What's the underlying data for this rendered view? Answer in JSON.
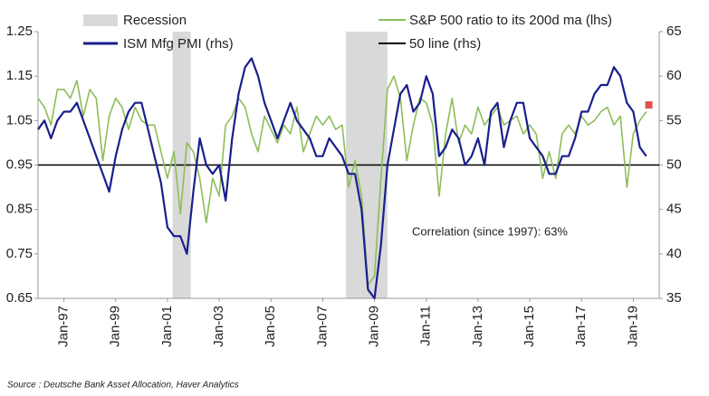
{
  "chart_data": {
    "type": "line",
    "legend": {
      "recession": "Recession"
    },
    "annotation": "Correlation (since 1997): 63%",
    "source": "Source : Deutsche Bank Asset Allocation, Haver Analytics",
    "recession_color": "#d9d9d9",
    "recessions": [
      [
        2001.2,
        2001.9
      ],
      [
        2007.9,
        2009.5
      ]
    ],
    "xlim": [
      1996,
      2020
    ],
    "xticks": [
      {
        "value": 1997,
        "label": "Jan-97"
      },
      {
        "value": 1999,
        "label": "Jan-99"
      },
      {
        "value": 2001,
        "label": "Jan-01"
      },
      {
        "value": 2003,
        "label": "Jan-03"
      },
      {
        "value": 2005,
        "label": "Jan-05"
      },
      {
        "value": 2007,
        "label": "Jan-07"
      },
      {
        "value": 2009,
        "label": "Jan-09"
      },
      {
        "value": 2011,
        "label": "Jan-11"
      },
      {
        "value": 2013,
        "label": "Jan-13"
      },
      {
        "value": 2015,
        "label": "Jan-15"
      },
      {
        "value": 2017,
        "label": "Jan-17"
      },
      {
        "value": 2019,
        "label": "Jan-19"
      }
    ],
    "ylim": [
      0.65,
      1.25
    ],
    "yticks": [
      0.65,
      0.75,
      0.85,
      0.95,
      1.05,
      1.15,
      1.25
    ],
    "y2lim": [
      35,
      65
    ],
    "y2ticks": [
      35,
      40,
      45,
      50,
      55,
      60,
      65
    ],
    "x": [
      1996,
      1996.25,
      1996.5,
      1996.75,
      1997,
      1997.25,
      1997.5,
      1997.75,
      1998,
      1998.25,
      1998.5,
      1998.75,
      1999,
      1999.25,
      1999.5,
      1999.75,
      2000,
      2000.25,
      2000.5,
      2000.75,
      2001,
      2001.25,
      2001.5,
      2001.75,
      2002,
      2002.25,
      2002.5,
      2002.75,
      2003,
      2003.25,
      2003.5,
      2003.75,
      2004,
      2004.25,
      2004.5,
      2004.75,
      2005,
      2005.25,
      2005.5,
      2005.75,
      2006,
      2006.25,
      2006.5,
      2006.75,
      2007,
      2007.25,
      2007.5,
      2007.75,
      2008,
      2008.25,
      2008.5,
      2008.75,
      2009,
      2009.25,
      2009.5,
      2009.75,
      2010,
      2010.25,
      2010.5,
      2010.75,
      2011,
      2011.25,
      2011.5,
      2011.75,
      2012,
      2012.25,
      2012.5,
      2012.75,
      2013,
      2013.25,
      2013.5,
      2013.75,
      2014,
      2014.25,
      2014.5,
      2014.75,
      2015,
      2015.25,
      2015.5,
      2015.75,
      2016,
      2016.25,
      2016.5,
      2016.75,
      2017,
      2017.25,
      2017.5,
      2017.75,
      2018,
      2018.25,
      2018.5,
      2018.75,
      2019,
      2019.25,
      2019.5
    ],
    "series": [
      {
        "name": "S&P 500 ratio to its 200d ma (lhs)",
        "color": "#8dbd5a",
        "axis": "y",
        "values": [
          1.1,
          1.08,
          1.04,
          1.12,
          1.12,
          1.1,
          1.14,
          1.06,
          1.12,
          1.1,
          0.96,
          1.06,
          1.1,
          1.08,
          1.03,
          1.08,
          1.05,
          1.04,
          1.04,
          0.98,
          0.92,
          0.98,
          0.84,
          1.0,
          0.98,
          0.92,
          0.82,
          0.92,
          0.88,
          1.04,
          1.06,
          1.1,
          1.08,
          1.02,
          0.98,
          1.06,
          1.03,
          1.0,
          1.04,
          1.02,
          1.08,
          0.98,
          1.02,
          1.06,
          1.04,
          1.06,
          1.03,
          1.04,
          0.9,
          0.96,
          0.88,
          0.68,
          0.7,
          0.92,
          1.12,
          1.15,
          1.1,
          0.96,
          1.04,
          1.1,
          1.09,
          1.04,
          0.88,
          1.02,
          1.1,
          1.0,
          1.04,
          1.02,
          1.08,
          1.04,
          1.06,
          1.08,
          1.04,
          1.05,
          1.06,
          1.02,
          1.04,
          1.02,
          0.92,
          0.98,
          0.92,
          1.02,
          1.04,
          1.02,
          1.06,
          1.04,
          1.05,
          1.07,
          1.08,
          1.04,
          1.06,
          0.9,
          1.02,
          1.05,
          1.07
        ]
      },
      {
        "name": "ISM Mfg PMI (rhs)",
        "color": "#1a1f8c",
        "axis": "y2",
        "values": [
          54,
          55,
          53,
          55,
          56,
          56,
          57,
          55,
          53,
          51,
          49,
          47,
          51,
          54,
          56,
          57,
          57,
          54,
          51,
          48,
          43,
          42,
          42,
          40,
          47,
          53,
          50,
          49,
          50,
          46,
          53,
          58,
          61,
          62,
          60,
          57,
          55,
          53,
          55,
          57,
          55,
          54,
          53,
          51,
          51,
          53,
          52,
          51,
          49,
          49,
          45,
          36,
          35,
          41,
          50,
          54,
          58,
          59,
          56,
          57,
          60,
          58,
          51,
          52,
          54,
          53,
          50,
          51,
          53,
          50,
          56,
          57,
          52,
          55,
          57,
          57,
          53,
          52,
          51,
          49,
          49,
          51,
          51,
          53,
          56,
          56,
          58,
          59,
          59,
          61,
          60,
          57,
          56,
          52,
          51
        ]
      }
    ],
    "reference_line": {
      "name": "50 line (rhs)",
      "value": 50,
      "axis": "y2",
      "color": "#000000"
    },
    "marker": {
      "x": 2019.6,
      "value": 1.085,
      "axis": "y",
      "color": "#d9534f"
    }
  }
}
